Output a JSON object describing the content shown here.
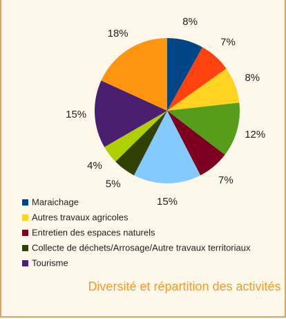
{
  "chart_data": {
    "type": "pie",
    "title": "Diversité et répartition des activités",
    "categories": [
      "Maraichage",
      null,
      "Autres travaux agricoles",
      null,
      "Entretien des espaces naturels",
      null,
      "Collecte de déchets/Arrosage/Autre travaux territoriaux",
      null,
      "Tourisme",
      null
    ],
    "values": [
      8,
      7,
      8,
      12,
      7,
      15,
      5,
      4,
      15,
      18
    ],
    "value_labels": [
      "8%",
      "7%",
      "8%",
      "12%",
      "7%",
      "15%",
      "5%",
      "4%",
      "15%",
      "18%"
    ],
    "colors": [
      "#004586",
      "#ff420e",
      "#ffd320",
      "#579d1c",
      "#7e0021",
      "#83caff",
      "#314004",
      "#aecf00",
      "#4b1f6f",
      "#ff950e"
    ]
  }
}
